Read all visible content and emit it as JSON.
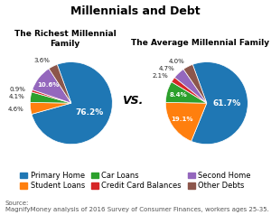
{
  "title": "Millennials and Debt",
  "annotations": [
    "VS.",
    "Source:\nMagnifyMoney analysis of 2016 Survey of Consumer Finances, workers ages 25-35."
  ],
  "legend": "lower center",
  "chart_data": [
    {
      "type": "pie",
      "title": "The Richest Millennial Family",
      "categories": [
        "Primary Home",
        "Student Loans",
        "Car Loans",
        "Credit Card Balances",
        "Second Home",
        "Other Debts"
      ],
      "values": [
        76.2,
        4.6,
        4.1,
        0.9,
        10.6,
        3.6
      ],
      "value_labels": [
        "76.2%",
        "4.6%",
        "4.1%",
        "0.9%",
        "10.6%",
        "3.6%"
      ],
      "data_labels": true
    },
    {
      "type": "pie",
      "title": "The Average Millennial Family",
      "categories": [
        "Primary Home",
        "Student Loans",
        "Car Loans",
        "Credit Card Balances",
        "Second Home",
        "Other Debts"
      ],
      "values": [
        61.7,
        19.1,
        8.4,
        2.1,
        4.7,
        4.0
      ],
      "value_labels": [
        "61.7%",
        "19.1%",
        "8.4%",
        "2.1%",
        "4.7%",
        "4.0%"
      ],
      "data_labels": true
    }
  ]
}
